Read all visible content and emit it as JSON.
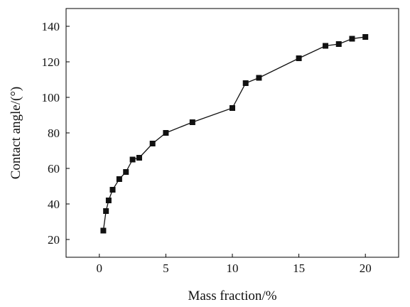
{
  "chart_data": {
    "type": "line",
    "title": "",
    "xlabel": "Mass fraction/%",
    "ylabel": "Contact angle/(°)",
    "xlim": [
      -2.5,
      22.5
    ],
    "ylim": [
      10,
      150
    ],
    "xticks": [
      0,
      5,
      10,
      15,
      20
    ],
    "yticks": [
      20,
      40,
      60,
      80,
      100,
      120,
      140
    ],
    "xtick_labels": [
      "0",
      "5",
      "10",
      "15",
      "20"
    ],
    "ytick_labels": [
      "20",
      "40",
      "60",
      "80",
      "100",
      "120",
      "140"
    ],
    "grid": false,
    "series": [
      {
        "marker": "square",
        "color": "#111111",
        "x": [
          0.3,
          0.5,
          0.7,
          1.0,
          1.5,
          2.0,
          2.5,
          3.0,
          4.0,
          5.0,
          7.0,
          10.0,
          11.0,
          12.0,
          15.0,
          17.0,
          18.0,
          19.0,
          20.0
        ],
        "y": [
          25,
          36,
          42,
          48,
          54,
          58,
          65,
          66,
          74,
          80,
          86,
          94,
          108,
          111,
          122,
          129,
          130,
          133,
          134
        ]
      }
    ]
  }
}
